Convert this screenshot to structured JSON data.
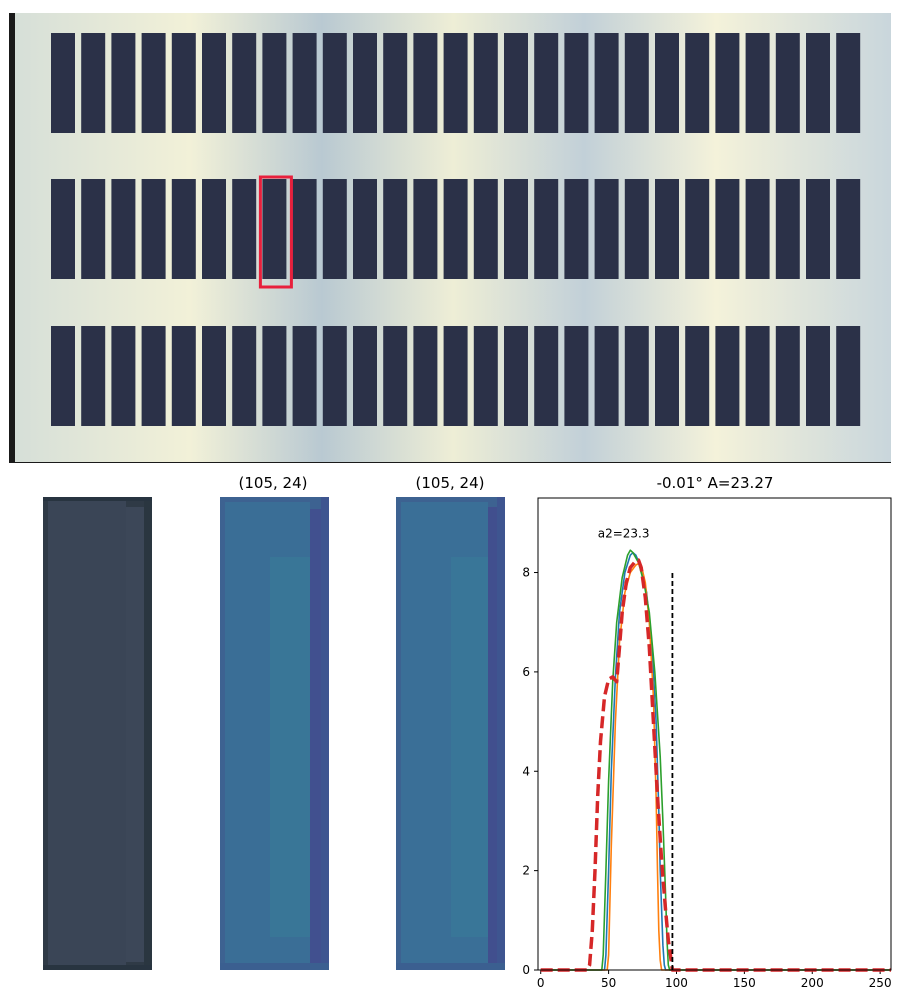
{
  "panel_grid": {
    "rows": 3,
    "cols": 27,
    "highlight_row": 1,
    "highlight_col": 7
  },
  "crops": [
    {
      "title": ""
    },
    {
      "title": "(105, 24)"
    },
    {
      "title": "(105, 24)"
    }
  ],
  "chart_data": {
    "type": "line",
    "title": "-0.01° A=23.27",
    "annotation": "a2=23.3",
    "xlabel": "",
    "ylabel": "",
    "xlim": [
      -2,
      258
    ],
    "ylim": [
      0,
      9.5
    ],
    "xticks": [
      0,
      50,
      100,
      150,
      200,
      250
    ],
    "yticks": [
      0,
      2,
      4,
      6,
      8
    ],
    "vline": {
      "x": 97,
      "y_top": 8.0,
      "style": "dashed",
      "color": "#000000"
    },
    "series": [
      {
        "color": "#1f77b4",
        "style": "solid",
        "x": [
          0,
          47,
          48,
          50,
          52,
          55,
          58,
          62,
          66,
          68,
          70,
          74,
          78,
          82,
          85,
          87,
          88,
          90,
          91,
          92,
          258
        ],
        "y": [
          0,
          0,
          0.3,
          2.0,
          4.0,
          5.9,
          7.2,
          8.0,
          8.35,
          8.4,
          8.35,
          8.1,
          7.6,
          6.5,
          5.0,
          3.2,
          2.0,
          0.5,
          0.1,
          0,
          0
        ]
      },
      {
        "color": "#ff7f0e",
        "style": "solid",
        "x": [
          0,
          49,
          50,
          52,
          55,
          58,
          62,
          66,
          70,
          72,
          74,
          77,
          80,
          83,
          85,
          86,
          87,
          88,
          89,
          258
        ],
        "y": [
          0,
          0,
          0.3,
          2.5,
          5.0,
          6.6,
          7.6,
          8.0,
          8.15,
          8.18,
          8.15,
          7.8,
          7.0,
          5.5,
          3.5,
          2.0,
          0.8,
          0.2,
          0,
          0
        ]
      },
      {
        "color": "#2ca02c",
        "style": "solid",
        "x": [
          0,
          45,
          46,
          48,
          50,
          53,
          56,
          60,
          64,
          66,
          68,
          72,
          76,
          80,
          84,
          88,
          90,
          92,
          93,
          94,
          95,
          258
        ],
        "y": [
          0,
          0,
          0.3,
          2.0,
          3.8,
          5.8,
          7.0,
          7.9,
          8.35,
          8.45,
          8.4,
          8.2,
          7.8,
          7.2,
          6.0,
          4.3,
          3.0,
          1.5,
          0.6,
          0.1,
          0,
          0
        ]
      },
      {
        "color": "#d62728",
        "style": "dashed",
        "x": [
          0,
          34,
          36,
          38,
          40,
          42,
          44,
          47,
          50,
          53,
          56,
          58,
          60,
          63,
          66,
          69,
          72,
          74,
          77,
          80,
          83,
          86,
          89,
          92,
          94,
          96,
          97,
          258
        ],
        "y": [
          0,
          0,
          0.1,
          0.8,
          2.0,
          3.5,
          4.6,
          5.5,
          5.85,
          5.9,
          5.8,
          6.5,
          7.2,
          7.8,
          8.1,
          8.2,
          8.25,
          8.1,
          7.5,
          6.5,
          5.0,
          3.5,
          2.2,
          1.2,
          0.6,
          0.2,
          0,
          0
        ]
      }
    ]
  }
}
